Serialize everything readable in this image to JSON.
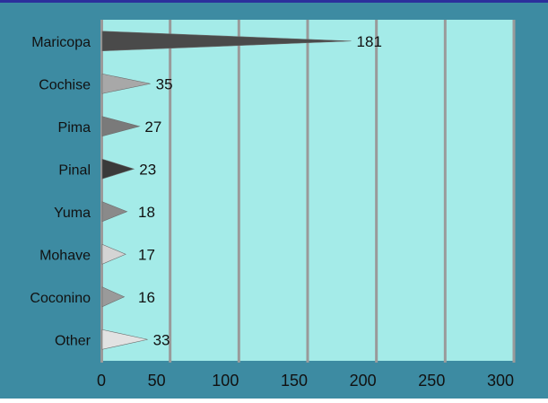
{
  "chart_data": {
    "type": "bar",
    "orientation": "horizontal",
    "bar_shape": "triangle",
    "categories": [
      "Maricopa",
      "Cochise",
      "Pima",
      "Pinal",
      "Yuma",
      "Mohave",
      "Coconino",
      "Other"
    ],
    "values": [
      181,
      35,
      27,
      23,
      18,
      17,
      16,
      33
    ],
    "data_labels": [
      "181",
      "35",
      "27",
      "23",
      "18",
      "17",
      "16",
      "33"
    ],
    "x_ticks": [
      "0",
      "50",
      "100",
      "150",
      "200",
      "250",
      "300"
    ],
    "xlim": [
      0,
      300
    ],
    "grid": true,
    "legend": "none",
    "colors": {
      "plot_background": "#a4ebe8",
      "panel_background": "#3d8ba2",
      "gridline": "#9a9a9a",
      "label_text": "#111111",
      "bars": [
        "#4a4a4a",
        "#a8a8a8",
        "#7a7a7a",
        "#3a3a3a",
        "#8a8a8a",
        "#d4d4d4",
        "#9a9a9a",
        "#e2e2e2"
      ]
    }
  }
}
